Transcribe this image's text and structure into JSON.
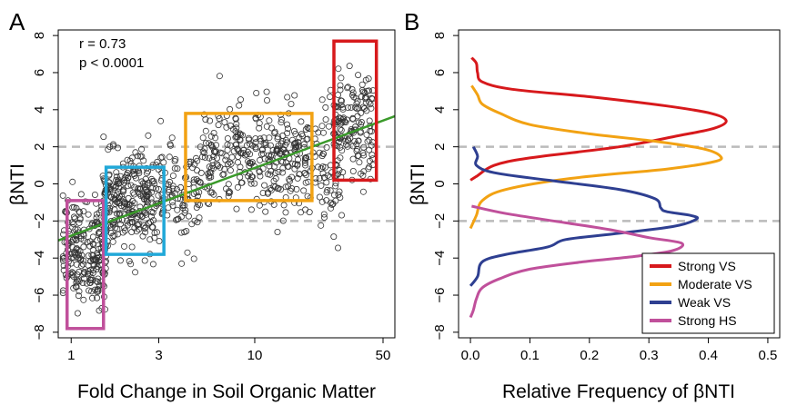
{
  "chart_data": [
    {
      "panel_label": "A",
      "type": "scatter",
      "xlabel": "Fold Change in Soil Organic Matter",
      "ylabel": "βNTI",
      "x_scale": "log",
      "xlim": [
        0.85,
        58
      ],
      "ylim": [
        -8.3,
        8.3
      ],
      "xticks": [
        1,
        3,
        10,
        50
      ],
      "xtick_labels": [
        "1",
        "3",
        "10",
        "50"
      ],
      "yticks": [
        -8,
        -6,
        -4,
        -2,
        0,
        2,
        4,
        6,
        8
      ],
      "ytick_labels": [
        "−8",
        "−6",
        "−4",
        "−2",
        "0",
        "2",
        "4",
        "6",
        "8"
      ],
      "annotations": [
        "r = 0.73",
        "p < 0.0001"
      ],
      "reference_lines_y": [
        2,
        -2
      ],
      "reference_line_color": "#bbbbbb",
      "regression_line": {
        "x": [
          0.85,
          58
        ],
        "y": [
          -3.05,
          3.65
        ],
        "color": "#3a9a2a"
      },
      "point_style": {
        "marker": "open-circle",
        "color": "#333333"
      },
      "point_clusters": [
        {
          "x_range": [
            0.9,
            1.55
          ],
          "y_mean": -3.6,
          "y_sd": 1.4,
          "count": 230
        },
        {
          "x_range": [
            1.5,
            2.9
          ],
          "y_mean": -1.0,
          "y_sd": 1.3,
          "count": 260
        },
        {
          "x_range": [
            2.9,
            5.0
          ],
          "y_mean": -0.6,
          "y_sd": 1.3,
          "count": 110
        },
        {
          "x_range": [
            5.0,
            20
          ],
          "y_mean": 1.4,
          "y_sd": 1.4,
          "count": 330
        },
        {
          "x_range": [
            20,
            30
          ],
          "y_mean": 1.0,
          "y_sd": 1.7,
          "count": 70
        },
        {
          "x_range": [
            27,
            45
          ],
          "y_mean": 2.8,
          "y_sd": 1.6,
          "count": 150
        }
      ],
      "boxes": [
        {
          "name": "Strong HS",
          "color": "#c0509b",
          "x": [
            0.95,
            1.5
          ],
          "y": [
            -7.8,
            -0.9
          ]
        },
        {
          "name": "Weak VS",
          "color": "#21a8d8",
          "x": [
            1.55,
            3.2
          ],
          "y": [
            -3.8,
            0.9
          ]
        },
        {
          "name": "Moderate VS",
          "color": "#f2a213",
          "x": [
            4.2,
            20.5
          ],
          "y": [
            -0.9,
            3.8
          ]
        },
        {
          "name": "Strong VS",
          "color": "#d7191c",
          "x": [
            27,
            46
          ],
          "y": [
            0.2,
            7.7
          ]
        }
      ]
    },
    {
      "panel_label": "B",
      "type": "line",
      "xlabel": "Relative Frequency of βNTI",
      "ylabel": "βNTI",
      "xlim": [
        -0.02,
        0.52
      ],
      "ylim": [
        -8.3,
        8.3
      ],
      "xticks": [
        0.0,
        0.1,
        0.2,
        0.3,
        0.4,
        0.5
      ],
      "xtick_labels": [
        "0.0",
        "0.1",
        "0.2",
        "0.3",
        "0.4",
        "0.5"
      ],
      "yticks": [
        -8,
        -6,
        -4,
        -2,
        0,
        2,
        4,
        6,
        8
      ],
      "ytick_labels": [
        "−8",
        "−6",
        "−4",
        "−2",
        "0",
        "2",
        "4",
        "6",
        "8"
      ],
      "reference_lines_y": [
        2,
        -2
      ],
      "legend_position": "bottom-right",
      "series": [
        {
          "name": "Strong VS",
          "color": "#d7191c",
          "points": [
            [
              0.002,
              6.8
            ],
            [
              0.01,
              6.5
            ],
            [
              0.012,
              6.0
            ],
            [
              0.02,
              5.5
            ],
            [
              0.07,
              5.1
            ],
            [
              0.2,
              4.7
            ],
            [
              0.33,
              4.2
            ],
            [
              0.405,
              3.8
            ],
            [
              0.43,
              3.4
            ],
            [
              0.41,
              3.0
            ],
            [
              0.35,
              2.6
            ],
            [
              0.25,
              2.0
            ],
            [
              0.1,
              1.4
            ],
            [
              0.04,
              1.0
            ],
            [
              0.01,
              0.4
            ],
            [
              0.0,
              0.2
            ]
          ]
        },
        {
          "name": "Moderate VS",
          "color": "#f2a213",
          "points": [
            [
              0.002,
              5.3
            ],
            [
              0.012,
              4.8
            ],
            [
              0.02,
              4.3
            ],
            [
              0.05,
              3.8
            ],
            [
              0.1,
              3.2
            ],
            [
              0.2,
              2.7
            ],
            [
              0.31,
              2.3
            ],
            [
              0.39,
              1.9
            ],
            [
              0.42,
              1.5
            ],
            [
              0.41,
              1.2
            ],
            [
              0.33,
              0.8
            ],
            [
              0.17,
              0.3
            ],
            [
              0.06,
              -0.3
            ],
            [
              0.02,
              -0.9
            ],
            [
              0.01,
              -1.7
            ],
            [
              0.0,
              -2.4
            ]
          ]
        },
        {
          "name": "Weak VS",
          "color": "#2e3f91",
          "points": [
            [
              0.005,
              2.0
            ],
            [
              0.012,
              1.5
            ],
            [
              0.01,
              1.0
            ],
            [
              0.04,
              0.6
            ],
            [
              0.13,
              0.2
            ],
            [
              0.25,
              -0.3
            ],
            [
              0.31,
              -0.8
            ],
            [
              0.32,
              -1.3
            ],
            [
              0.33,
              -1.5
            ],
            [
              0.37,
              -1.7
            ],
            [
              0.38,
              -1.9
            ],
            [
              0.34,
              -2.3
            ],
            [
              0.24,
              -2.7
            ],
            [
              0.16,
              -3.0
            ],
            [
              0.13,
              -3.4
            ],
            [
              0.06,
              -3.8
            ],
            [
              0.02,
              -4.2
            ],
            [
              0.012,
              -5.0
            ],
            [
              0.0,
              -5.5
            ]
          ]
        },
        {
          "name": "Strong HS",
          "color": "#c0509b",
          "points": [
            [
              0.002,
              -1.2
            ],
            [
              0.06,
              -1.6
            ],
            [
              0.16,
              -2.1
            ],
            [
              0.24,
              -2.5
            ],
            [
              0.3,
              -2.9
            ],
            [
              0.355,
              -3.2
            ],
            [
              0.34,
              -3.6
            ],
            [
              0.28,
              -3.9
            ],
            [
              0.19,
              -4.2
            ],
            [
              0.1,
              -4.6
            ],
            [
              0.05,
              -5.1
            ],
            [
              0.02,
              -5.6
            ],
            [
              0.01,
              -6.2
            ],
            [
              0.005,
              -6.8
            ],
            [
              0.0,
              -7.2
            ]
          ]
        }
      ]
    }
  ]
}
